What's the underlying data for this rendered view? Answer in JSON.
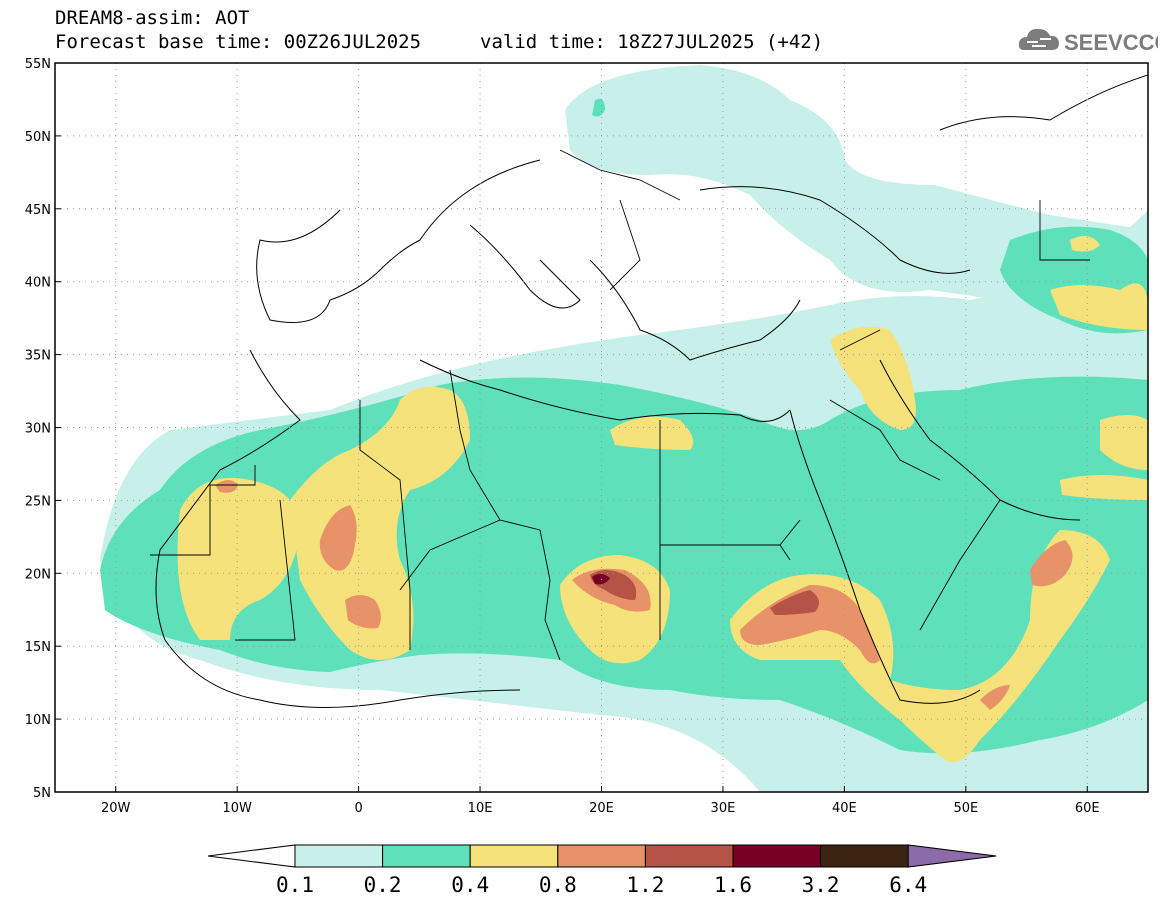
{
  "title": {
    "line1": "DREAM8-assim: AOT",
    "line2": "Forecast base time: 00Z26JUL2025",
    "valid": "valid time: 18Z27JUL2025 (+42)"
  },
  "logo": {
    "text": "SEEVCCC",
    "icon": "cloud-icon"
  },
  "map": {
    "lon_range": [
      -25,
      65
    ],
    "lat_range": [
      5,
      55
    ],
    "lon_ticks": [
      {
        "v": -20,
        "label": "20W"
      },
      {
        "v": -10,
        "label": "10W"
      },
      {
        "v": 0,
        "label": "0"
      },
      {
        "v": 10,
        "label": "10E"
      },
      {
        "v": 20,
        "label": "20E"
      },
      {
        "v": 30,
        "label": "30E"
      },
      {
        "v": 40,
        "label": "40E"
      },
      {
        "v": 50,
        "label": "50E"
      },
      {
        "v": 60,
        "label": "60E"
      }
    ],
    "lat_ticks": [
      {
        "v": 55,
        "label": "55N"
      },
      {
        "v": 50,
        "label": "50N"
      },
      {
        "v": 45,
        "label": "45N"
      },
      {
        "v": 40,
        "label": "40N"
      },
      {
        "v": 35,
        "label": "35N"
      },
      {
        "v": 30,
        "label": "30N"
      },
      {
        "v": 25,
        "label": "25N"
      },
      {
        "v": 20,
        "label": "20N"
      },
      {
        "v": 15,
        "label": "15N"
      },
      {
        "v": 10,
        "label": "10N"
      },
      {
        "v": 5,
        "label": "5N"
      }
    ],
    "grid": "dotted"
  },
  "colorbar": {
    "colors": [
      "#ffffff",
      "#c7f0ea",
      "#5ee0bb",
      "#f5e27a",
      "#e8926a",
      "#b55347",
      "#780026",
      "#3b2412",
      "#8b6aa8"
    ],
    "labels": [
      "0.1",
      "0.2",
      "0.4",
      "0.8",
      "1.2",
      "1.6",
      "3.2",
      "6.4"
    ]
  }
}
